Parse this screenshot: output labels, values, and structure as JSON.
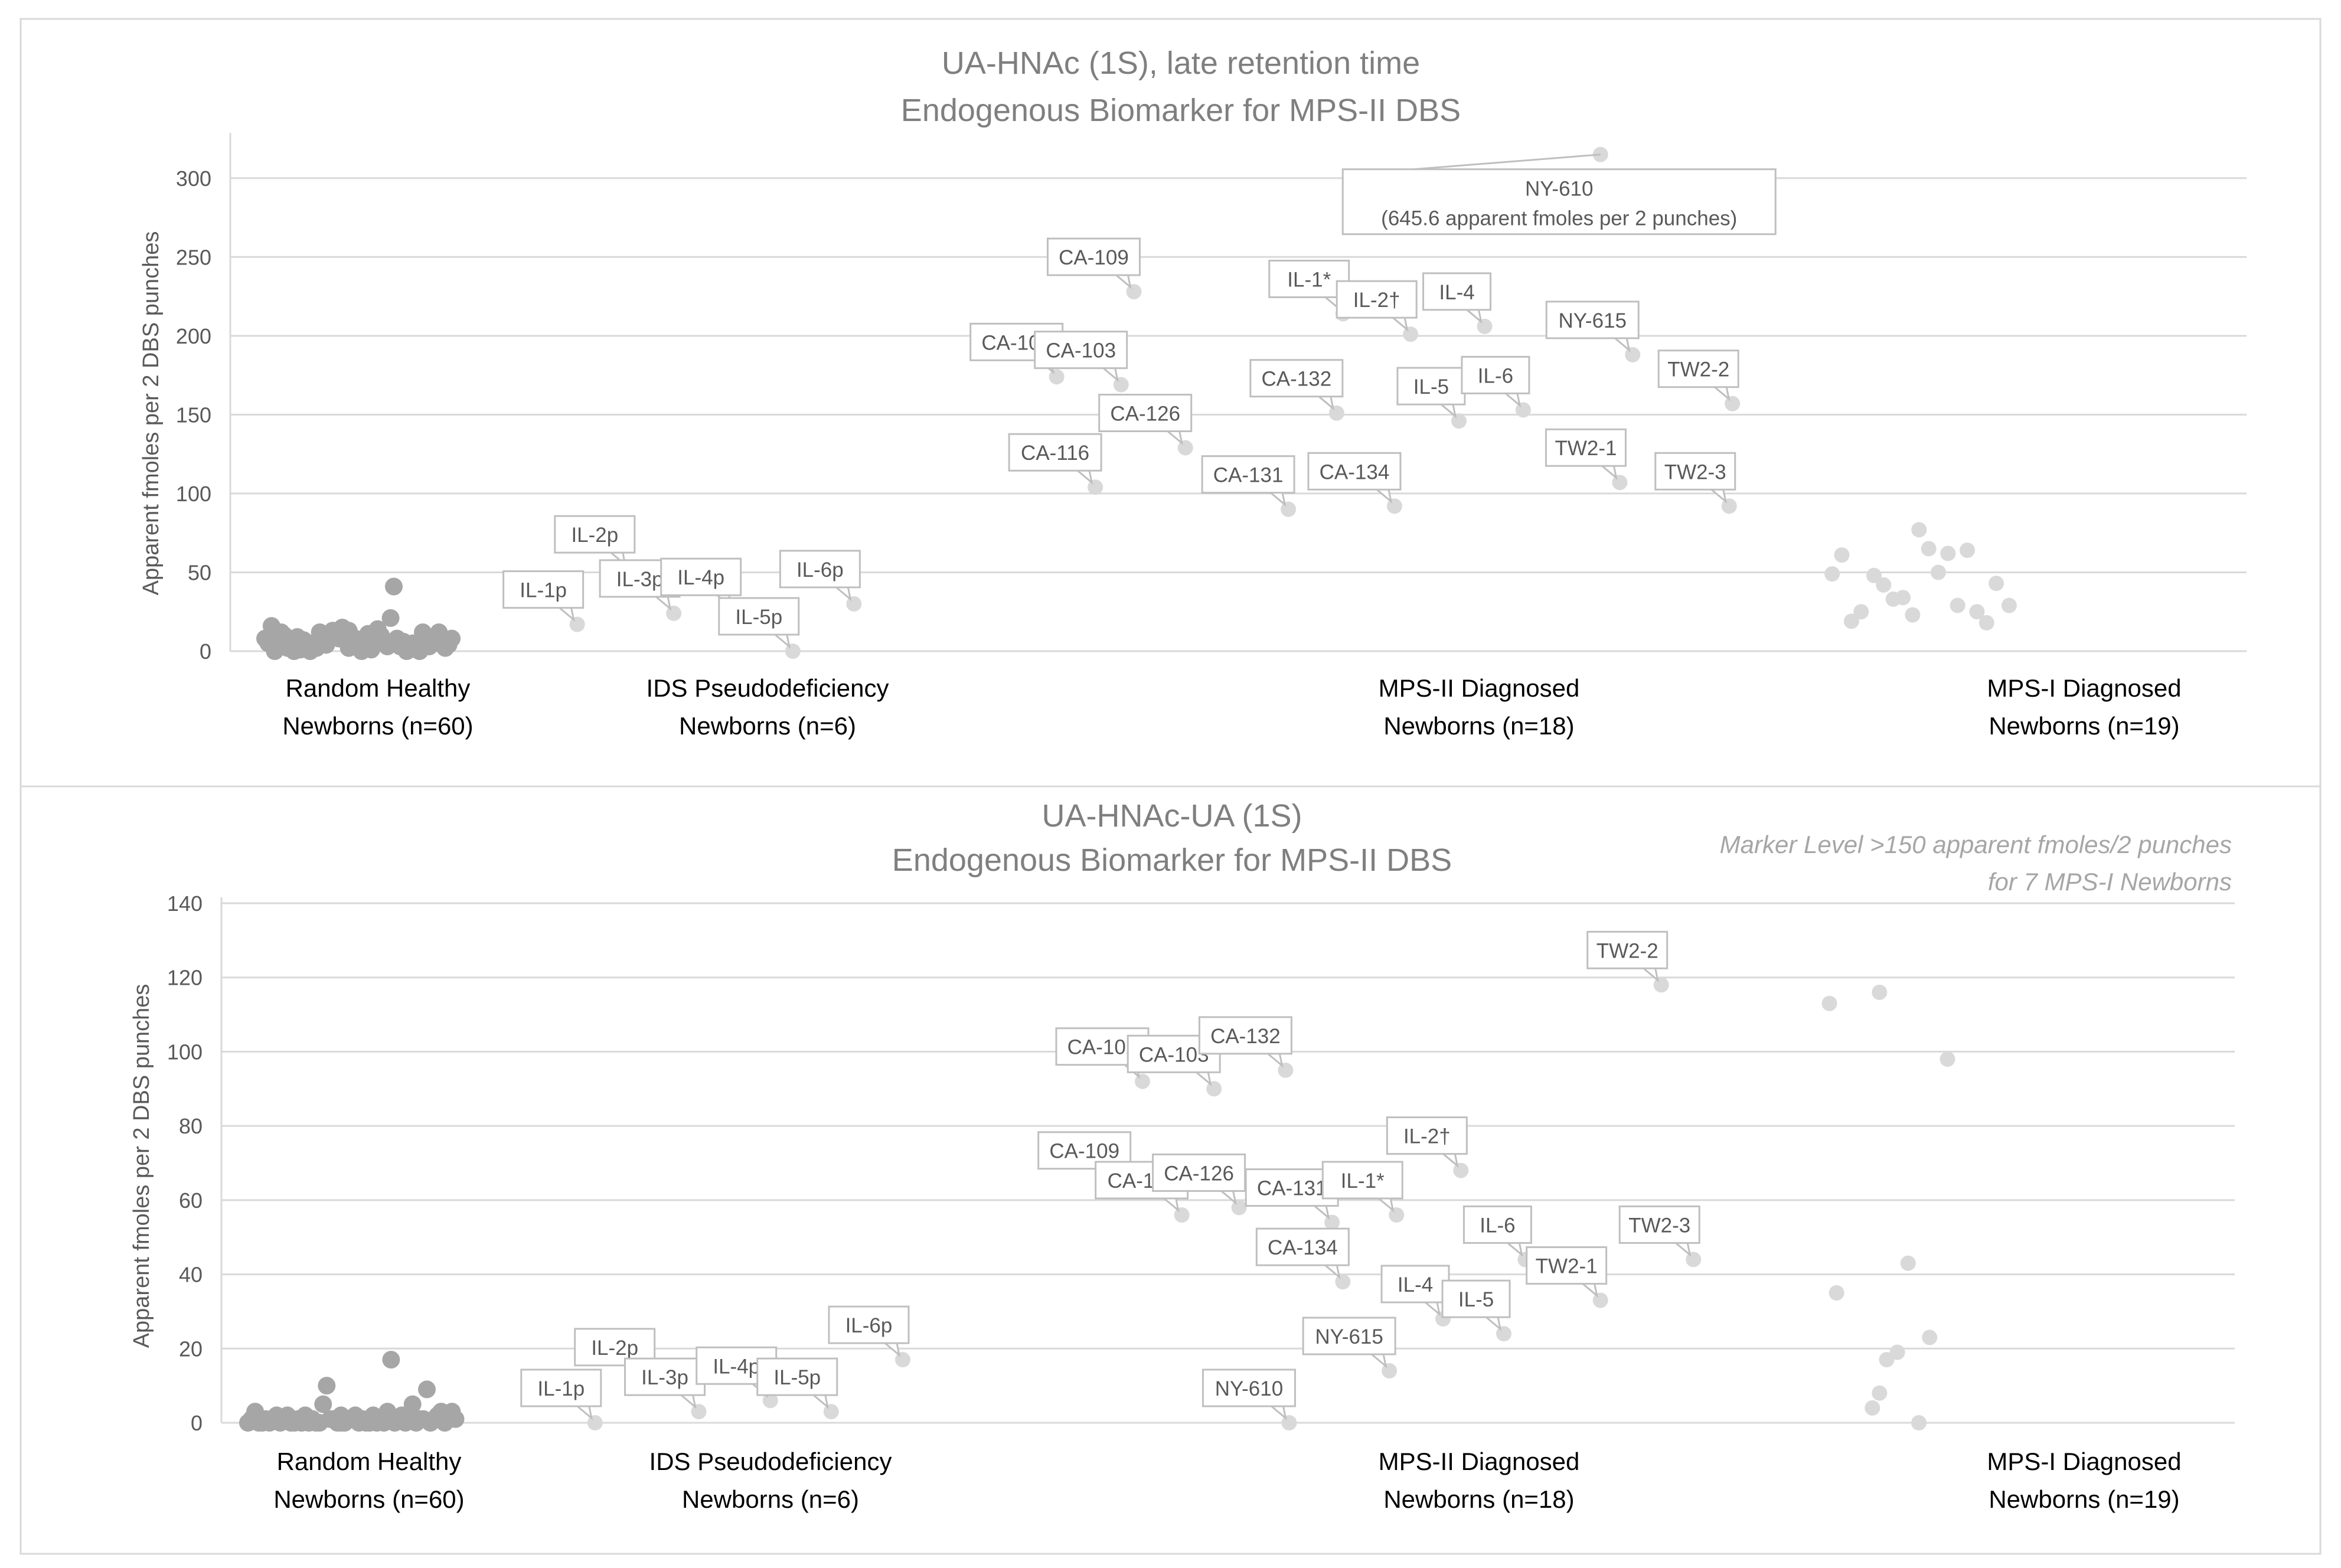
{
  "chart_data": [
    {
      "type": "scatter",
      "title": "UA-HNAc (1S), late retention time",
      "subtitle": "Endogenous Biomarker for MPS-II DBS",
      "ylabel": "Apparent fmoles per 2 DBS punches",
      "xlabel": "",
      "ylim": [
        0,
        325
      ],
      "yticks": [
        0,
        50,
        100,
        150,
        200,
        250,
        300
      ],
      "grid": true,
      "legend": "none",
      "categories": [
        {
          "line1": "Random Healthy",
          "line2": "Newborns (n=60)"
        },
        {
          "line1": "IDS Pseudodeficiency",
          "line2": "Newborns (n=6)"
        },
        {
          "line1": "MPS-II Diagnosed",
          "line2": "Newborns (n=18)"
        },
        {
          "line1": "MPS-I Diagnosed",
          "line2": "Newborns (n=19)"
        }
      ],
      "series": [
        {
          "name": "Random Healthy Newborns (n=60)",
          "color": "#a6a6a6",
          "points": [
            {
              "x": 1.0,
              "y": 8
            },
            {
              "x": 1.02,
              "y": 16
            },
            {
              "x": 1.03,
              "y": 0
            },
            {
              "x": 1.05,
              "y": 12
            },
            {
              "x": 1.06,
              "y": 10
            },
            {
              "x": 1.08,
              "y": 5
            },
            {
              "x": 1.09,
              "y": 0
            },
            {
              "x": 1.1,
              "y": 9
            },
            {
              "x": 1.12,
              "y": 7
            },
            {
              "x": 1.13,
              "y": 3
            },
            {
              "x": 1.14,
              "y": 0
            },
            {
              "x": 1.16,
              "y": 2
            },
            {
              "x": 1.17,
              "y": 12
            },
            {
              "x": 1.18,
              "y": 6
            },
            {
              "x": 1.2,
              "y": 9
            },
            {
              "x": 1.21,
              "y": 13
            },
            {
              "x": 1.22,
              "y": 11
            },
            {
              "x": 1.24,
              "y": 15
            },
            {
              "x": 1.25,
              "y": 10
            },
            {
              "x": 1.26,
              "y": 13
            },
            {
              "x": 1.27,
              "y": 6
            },
            {
              "x": 1.29,
              "y": 4
            },
            {
              "x": 1.3,
              "y": 0
            },
            {
              "x": 1.31,
              "y": 2
            },
            {
              "x": 1.32,
              "y": 11
            },
            {
              "x": 1.34,
              "y": 7
            },
            {
              "x": 1.35,
              "y": 14
            },
            {
              "x": 1.36,
              "y": 10
            },
            {
              "x": 1.37,
              "y": 5
            },
            {
              "x": 1.39,
              "y": 21
            },
            {
              "x": 1.4,
              "y": 41
            },
            {
              "x": 1.41,
              "y": 8
            },
            {
              "x": 1.42,
              "y": 3
            },
            {
              "x": 1.44,
              "y": 0
            },
            {
              "x": 1.45,
              "y": 1
            },
            {
              "x": 1.46,
              "y": 5
            },
            {
              "x": 1.47,
              "y": 2
            },
            {
              "x": 1.49,
              "y": 12
            },
            {
              "x": 1.5,
              "y": 6
            },
            {
              "x": 1.51,
              "y": 3
            },
            {
              "x": 1.52,
              "y": 9
            },
            {
              "x": 1.54,
              "y": 12
            },
            {
              "x": 1.55,
              "y": 4
            },
            {
              "x": 1.56,
              "y": 2
            },
            {
              "x": 1.58,
              "y": 8
            },
            {
              "x": 1.04,
              "y": 4
            },
            {
              "x": 1.11,
              "y": 1
            },
            {
              "x": 1.19,
              "y": 4
            },
            {
              "x": 1.28,
              "y": 8
            },
            {
              "x": 1.33,
              "y": 1
            },
            {
              "x": 1.43,
              "y": 6
            },
            {
              "x": 1.48,
              "y": 0
            },
            {
              "x": 1.53,
              "y": 6
            },
            {
              "x": 1.07,
              "y": 2
            },
            {
              "x": 1.15,
              "y": 5
            },
            {
              "x": 1.23,
              "y": 8
            },
            {
              "x": 1.38,
              "y": 3
            },
            {
              "x": 1.57,
              "y": 4
            },
            {
              "x": 1.01,
              "y": 5
            },
            {
              "x": 1.26,
              "y": 2
            }
          ]
        },
        {
          "name": "IDS Pseudodeficiency Newborns (n=6)",
          "color": "#d9d9d9",
          "points": [
            {
              "x": 1.97,
              "y": 17,
              "label": "IL-1p"
            },
            {
              "x": 2.13,
              "y": 52,
              "label": "IL-2p"
            },
            {
              "x": 2.27,
              "y": 24,
              "label": "IL-3p"
            },
            {
              "x": 2.46,
              "y": 25,
              "label": "IL-4p"
            },
            {
              "x": 2.64,
              "y": 0,
              "label": "IL-5p"
            },
            {
              "x": 2.83,
              "y": 30,
              "label": "IL-6p"
            }
          ]
        },
        {
          "name": "MPS-II Diagnosed Newborns (n=18)",
          "color": "#d9d9d9",
          "points": [
            {
              "x": 3.46,
              "y": 174,
              "label": "CA-102"
            },
            {
              "x": 3.7,
              "y": 228,
              "label": "CA-109"
            },
            {
              "x": 3.66,
              "y": 169,
              "label": "CA-103"
            },
            {
              "x": 3.86,
              "y": 129,
              "label": "CA-126"
            },
            {
              "x": 3.58,
              "y": 104,
              "label": "CA-116"
            },
            {
              "x": 4.18,
              "y": 90,
              "label": "CA-131"
            },
            {
              "x": 4.33,
              "y": 151,
              "label": "CA-132"
            },
            {
              "x": 4.51,
              "y": 92,
              "label": "CA-134"
            },
            {
              "x": 4.35,
              "y": 214,
              "label": "IL-1*"
            },
            {
              "x": 4.56,
              "y": 201,
              "label": "IL-2†"
            },
            {
              "x": 4.79,
              "y": 206,
              "label": "IL-4"
            },
            {
              "x": 4.71,
              "y": 146,
              "label": "IL-5"
            },
            {
              "x": 4.91,
              "y": 153,
              "label": "IL-6"
            },
            {
              "x": 5.15,
              "y": 315,
              "label": "NY-610",
              "label2": "(645.6 apparent fmoles per 2 punches)"
            },
            {
              "x": 5.25,
              "y": 188,
              "label": "NY-615"
            },
            {
              "x": 5.21,
              "y": 107,
              "label": "TW2-1"
            },
            {
              "x": 5.56,
              "y": 157,
              "label": "TW2-2"
            },
            {
              "x": 5.55,
              "y": 92,
              "label": "TW2-3"
            }
          ]
        },
        {
          "name": "MPS-I Diagnosed Newborns (n=19)",
          "color": "#d9d9d9",
          "points": [
            {
              "x": 5.87,
              "y": 49
            },
            {
              "x": 5.9,
              "y": 61
            },
            {
              "x": 5.93,
              "y": 19
            },
            {
              "x": 5.96,
              "y": 25
            },
            {
              "x": 6.0,
              "y": 48
            },
            {
              "x": 6.03,
              "y": 42
            },
            {
              "x": 6.06,
              "y": 33
            },
            {
              "x": 6.09,
              "y": 34
            },
            {
              "x": 6.12,
              "y": 23
            },
            {
              "x": 6.14,
              "y": 77
            },
            {
              "x": 6.17,
              "y": 65
            },
            {
              "x": 6.2,
              "y": 50
            },
            {
              "x": 6.23,
              "y": 62
            },
            {
              "x": 6.26,
              "y": 29
            },
            {
              "x": 6.29,
              "y": 64
            },
            {
              "x": 6.32,
              "y": 25
            },
            {
              "x": 6.35,
              "y": 18
            },
            {
              "x": 6.38,
              "y": 43
            },
            {
              "x": 6.42,
              "y": 29
            }
          ]
        }
      ]
    },
    {
      "type": "scatter",
      "title": "UA-HNAc-UA (1S)",
      "subtitle": "Endogenous Biomarker for MPS-II DBS",
      "ylabel": "Apparent fmoles per 2 DBS punches",
      "xlabel": "",
      "ylim": [
        0,
        140
      ],
      "yticks": [
        0,
        20,
        40,
        60,
        80,
        100,
        120,
        140
      ],
      "grid": true,
      "legend": "none",
      "annotation": {
        "line1": "Marker Level  >150 apparent fmoles/2 punches",
        "line2": "for 7 MPS-I Newborns"
      },
      "categories": [
        {
          "line1": "Random Healthy",
          "line2": "Newborns (n=60)"
        },
        {
          "line1": "IDS Pseudodeficiency",
          "line2": "Newborns (n=6)"
        },
        {
          "line1": "MPS-II Diagnosed",
          "line2": "Newborns (n=18)"
        },
        {
          "line1": "MPS-I Diagnosed",
          "line2": "Newborns (n=19)"
        }
      ],
      "series": [
        {
          "name": "Random Healthy Newborns (n=60)",
          "color": "#a6a6a6",
          "points": [
            {
              "x": 1.0,
              "y": 0
            },
            {
              "x": 1.02,
              "y": 3
            },
            {
              "x": 1.03,
              "y": 0
            },
            {
              "x": 1.05,
              "y": 1
            },
            {
              "x": 1.06,
              "y": 0
            },
            {
              "x": 1.08,
              "y": 2
            },
            {
              "x": 1.09,
              "y": 0
            },
            {
              "x": 1.1,
              "y": 1
            },
            {
              "x": 1.12,
              "y": 0
            },
            {
              "x": 1.13,
              "y": 0
            },
            {
              "x": 1.14,
              "y": 1
            },
            {
              "x": 1.16,
              "y": 2
            },
            {
              "x": 1.17,
              "y": 0
            },
            {
              "x": 1.18,
              "y": 1
            },
            {
              "x": 1.2,
              "y": 0
            },
            {
              "x": 1.21,
              "y": 5
            },
            {
              "x": 1.22,
              "y": 10
            },
            {
              "x": 1.24,
              "y": 1
            },
            {
              "x": 1.25,
              "y": 0
            },
            {
              "x": 1.26,
              "y": 2
            },
            {
              "x": 1.27,
              "y": 0
            },
            {
              "x": 1.29,
              "y": 1
            },
            {
              "x": 1.3,
              "y": 2
            },
            {
              "x": 1.31,
              "y": 0
            },
            {
              "x": 1.32,
              "y": 1
            },
            {
              "x": 1.34,
              "y": 0
            },
            {
              "x": 1.35,
              "y": 2
            },
            {
              "x": 1.36,
              "y": 0
            },
            {
              "x": 1.37,
              "y": 1
            },
            {
              "x": 1.39,
              "y": 3
            },
            {
              "x": 1.4,
              "y": 17
            },
            {
              "x": 1.41,
              "y": 0
            },
            {
              "x": 1.42,
              "y": 1
            },
            {
              "x": 1.44,
              "y": 0
            },
            {
              "x": 1.45,
              "y": 2
            },
            {
              "x": 1.46,
              "y": 5
            },
            {
              "x": 1.47,
              "y": 0
            },
            {
              "x": 1.49,
              "y": 1
            },
            {
              "x": 1.5,
              "y": 9
            },
            {
              "x": 1.51,
              "y": 0
            },
            {
              "x": 1.52,
              "y": 1
            },
            {
              "x": 1.54,
              "y": 3
            },
            {
              "x": 1.55,
              "y": 0
            },
            {
              "x": 1.56,
              "y": 2
            },
            {
              "x": 1.58,
              "y": 1
            },
            {
              "x": 1.04,
              "y": 0
            },
            {
              "x": 1.11,
              "y": 2
            },
            {
              "x": 1.19,
              "y": 0
            },
            {
              "x": 1.28,
              "y": 1
            },
            {
              "x": 1.33,
              "y": 0
            },
            {
              "x": 1.43,
              "y": 2
            },
            {
              "x": 1.48,
              "y": 1
            },
            {
              "x": 1.53,
              "y": 2
            },
            {
              "x": 1.07,
              "y": 1
            },
            {
              "x": 1.15,
              "y": 0
            },
            {
              "x": 1.23,
              "y": 1
            },
            {
              "x": 1.38,
              "y": 0
            },
            {
              "x": 1.57,
              "y": 3
            },
            {
              "x": 1.01,
              "y": 1
            },
            {
              "x": 1.26,
              "y": 0
            }
          ]
        },
        {
          "name": "IDS Pseudodeficiency Newborns (n=6)",
          "color": "#d9d9d9",
          "points": [
            {
              "x": 1.97,
              "y": 0,
              "label": "IL-1p"
            },
            {
              "x": 2.12,
              "y": 11,
              "label": "IL-2p"
            },
            {
              "x": 2.26,
              "y": 3,
              "label": "IL-3p"
            },
            {
              "x": 2.46,
              "y": 6,
              "label": "IL-4p"
            },
            {
              "x": 2.63,
              "y": 3,
              "label": "IL-5p"
            },
            {
              "x": 2.83,
              "y": 17,
              "label": "IL-6p"
            }
          ]
        },
        {
          "name": "MPS-II Diagnosed Newborns (n=18)",
          "color": "#d9d9d9",
          "points": [
            {
              "x": 3.5,
              "y": 92,
              "label": "CA-102"
            },
            {
              "x": 3.7,
              "y": 90,
              "label": "CA-103"
            },
            {
              "x": 3.9,
              "y": 95,
              "label": "CA-132"
            },
            {
              "x": 3.45,
              "y": 64,
              "label": "CA-109"
            },
            {
              "x": 3.61,
              "y": 56,
              "label": "CA-116"
            },
            {
              "x": 3.77,
              "y": 58,
              "label": "CA-126"
            },
            {
              "x": 4.03,
              "y": 54,
              "label": "CA-131"
            },
            {
              "x": 4.06,
              "y": 38,
              "label": "CA-134"
            },
            {
              "x": 4.21,
              "y": 56,
              "label": "IL-1*"
            },
            {
              "x": 4.39,
              "y": 68,
              "label": "IL-2†"
            },
            {
              "x": 4.34,
              "y": 28,
              "label": "IL-4"
            },
            {
              "x": 4.51,
              "y": 24,
              "label": "IL-5"
            },
            {
              "x": 4.57,
              "y": 44,
              "label": "IL-6"
            },
            {
              "x": 3.91,
              "y": 0,
              "label": "NY-610"
            },
            {
              "x": 4.19,
              "y": 14,
              "label": "NY-615"
            },
            {
              "x": 4.78,
              "y": 33,
              "label": "TW2-1"
            },
            {
              "x": 4.95,
              "y": 118,
              "label": "TW2-2"
            },
            {
              "x": 5.04,
              "y": 44,
              "label": "TW2-3"
            }
          ]
        },
        {
          "name": "MPS-I Diagnosed Newborns (n=19)",
          "color": "#d9d9d9",
          "points": [
            {
              "x": 5.42,
              "y": 113
            },
            {
              "x": 5.44,
              "y": 35
            },
            {
              "x": 5.56,
              "y": 116
            },
            {
              "x": 5.54,
              "y": 4
            },
            {
              "x": 5.56,
              "y": 8
            },
            {
              "x": 5.58,
              "y": 17
            },
            {
              "x": 5.61,
              "y": 19
            },
            {
              "x": 5.64,
              "y": 43
            },
            {
              "x": 5.67,
              "y": 0
            },
            {
              "x": 5.7,
              "y": 23
            },
            {
              "x": 5.75,
              "y": 98
            }
          ]
        }
      ]
    }
  ]
}
